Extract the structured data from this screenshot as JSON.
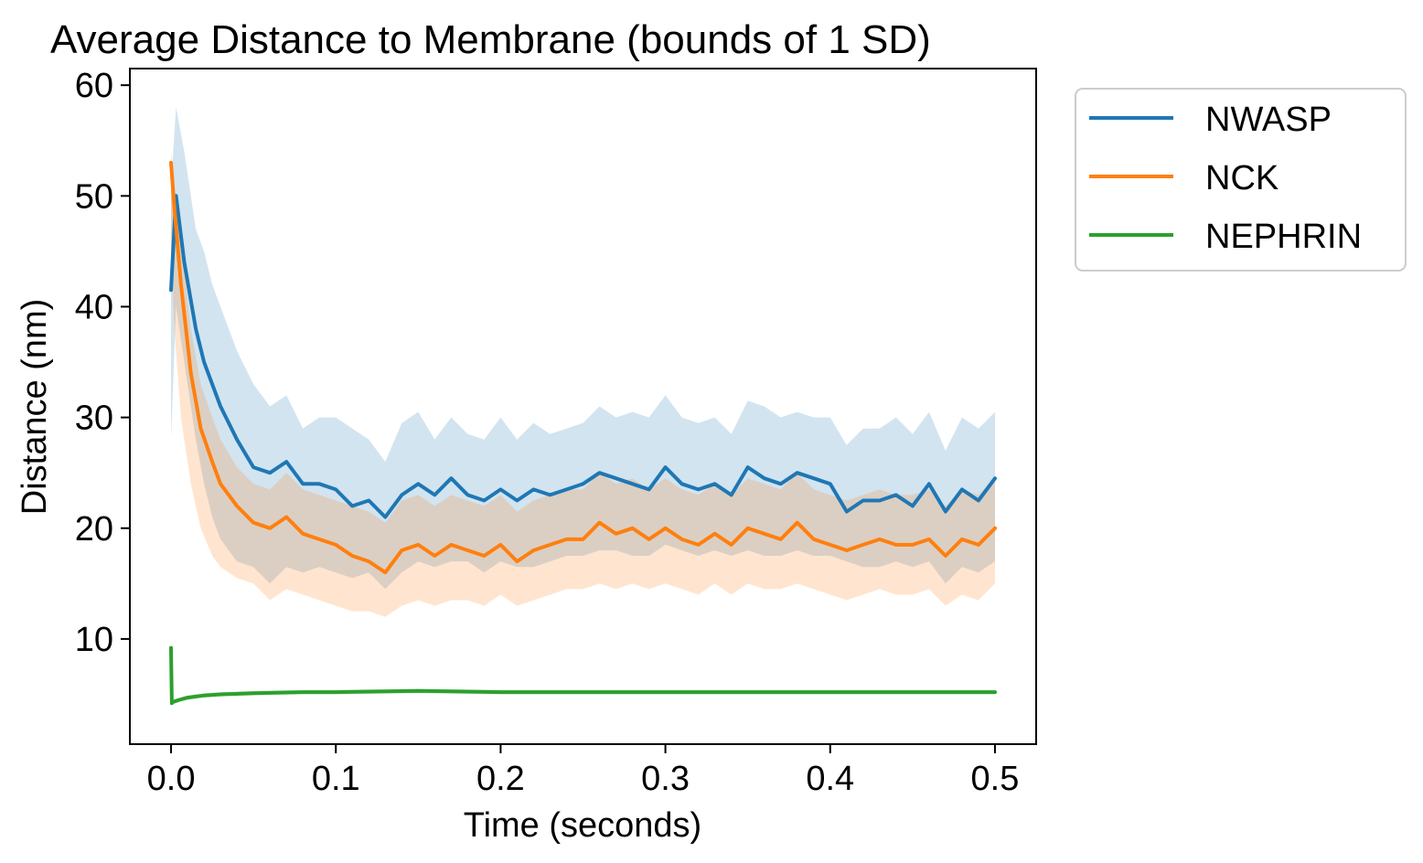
{
  "chart_data": {
    "type": "line",
    "title": "Average Distance to Membrane (bounds of 1 SD)",
    "xlabel": "Time (seconds)",
    "ylabel": "Distance (nm)",
    "xlim": [
      -0.025,
      0.525
    ],
    "ylim": [
      0.5,
      61.5
    ],
    "xticks": [
      0.0,
      0.1,
      0.2,
      0.3,
      0.4,
      0.5
    ],
    "xtick_labels": [
      "0.0",
      "0.1",
      "0.2",
      "0.3",
      "0.4",
      "0.5"
    ],
    "yticks": [
      10,
      20,
      30,
      40,
      50,
      60
    ],
    "ytick_labels": [
      "10",
      "20",
      "30",
      "40",
      "50",
      "60"
    ],
    "grid": false,
    "legend_position": "outside-top-right",
    "series": [
      {
        "name": "NWASP",
        "color": "#1f77b4",
        "band_color": "#1f77b4",
        "x": [
          0.0,
          0.003,
          0.008,
          0.015,
          0.02,
          0.025,
          0.03,
          0.04,
          0.05,
          0.06,
          0.07,
          0.08,
          0.09,
          0.1,
          0.11,
          0.12,
          0.13,
          0.14,
          0.15,
          0.16,
          0.17,
          0.18,
          0.19,
          0.2,
          0.21,
          0.22,
          0.23,
          0.24,
          0.25,
          0.26,
          0.27,
          0.28,
          0.29,
          0.3,
          0.31,
          0.32,
          0.33,
          0.34,
          0.35,
          0.36,
          0.37,
          0.38,
          0.39,
          0.4,
          0.41,
          0.42,
          0.43,
          0.44,
          0.45,
          0.46,
          0.47,
          0.48,
          0.49,
          0.5
        ],
        "y": [
          41.5,
          50.0,
          44.0,
          38.0,
          35.0,
          33.0,
          31.0,
          28.0,
          25.5,
          25.0,
          26.0,
          24.0,
          24.0,
          23.5,
          22.0,
          22.5,
          21.0,
          23.0,
          24.0,
          23.0,
          24.5,
          23.0,
          22.5,
          23.5,
          22.5,
          23.5,
          23.0,
          23.5,
          24.0,
          25.0,
          24.5,
          24.0,
          23.5,
          25.5,
          24.0,
          23.5,
          24.0,
          23.0,
          25.5,
          24.5,
          24.0,
          25.0,
          24.5,
          24.0,
          21.5,
          22.5,
          22.5,
          23.0,
          22.0,
          24.0,
          21.5,
          23.5,
          22.5,
          24.5
        ],
        "lower": [
          28.0,
          40.0,
          35.0,
          28.0,
          24.0,
          21.0,
          19.0,
          17.0,
          16.5,
          15.0,
          16.5,
          16.0,
          16.5,
          16.0,
          15.5,
          16.0,
          14.5,
          16.0,
          17.0,
          16.5,
          17.0,
          17.0,
          16.0,
          17.0,
          16.5,
          16.5,
          17.0,
          17.5,
          17.5,
          18.0,
          18.0,
          17.5,
          17.5,
          18.5,
          18.0,
          17.5,
          18.0,
          17.5,
          18.0,
          17.5,
          17.5,
          18.0,
          17.5,
          17.5,
          17.0,
          16.5,
          16.5,
          17.0,
          16.5,
          17.0,
          15.0,
          16.5,
          16.0,
          17.0
        ],
        "upper": [
          51.0,
          58.0,
          54.0,
          47.0,
          45.0,
          42.0,
          40.0,
          36.0,
          33.0,
          31.0,
          32.0,
          29.0,
          30.0,
          30.0,
          29.0,
          28.0,
          26.0,
          29.5,
          30.5,
          28.0,
          30.0,
          28.5,
          28.0,
          30.0,
          28.0,
          29.5,
          28.5,
          29.0,
          29.5,
          31.0,
          30.0,
          30.5,
          30.0,
          32.0,
          30.0,
          29.5,
          30.0,
          28.5,
          31.5,
          31.0,
          30.0,
          30.5,
          30.0,
          30.0,
          27.5,
          29.0,
          29.0,
          30.0,
          28.5,
          30.5,
          27.0,
          30.0,
          29.0,
          30.5
        ]
      },
      {
        "name": "NCK",
        "color": "#ff7f0e",
        "band_color": "#ff7f0e",
        "x": [
          0.0,
          0.002,
          0.006,
          0.012,
          0.018,
          0.025,
          0.03,
          0.04,
          0.05,
          0.06,
          0.07,
          0.08,
          0.09,
          0.1,
          0.11,
          0.12,
          0.13,
          0.14,
          0.15,
          0.16,
          0.17,
          0.18,
          0.19,
          0.2,
          0.21,
          0.22,
          0.23,
          0.24,
          0.25,
          0.26,
          0.27,
          0.28,
          0.29,
          0.3,
          0.31,
          0.32,
          0.33,
          0.34,
          0.35,
          0.36,
          0.37,
          0.38,
          0.39,
          0.4,
          0.41,
          0.42,
          0.43,
          0.44,
          0.45,
          0.46,
          0.47,
          0.48,
          0.49,
          0.5
        ],
        "y": [
          53.0,
          49.0,
          42.0,
          34.0,
          29.0,
          26.0,
          24.0,
          22.0,
          20.5,
          20.0,
          21.0,
          19.5,
          19.0,
          18.5,
          17.5,
          17.0,
          16.0,
          18.0,
          18.5,
          17.5,
          18.5,
          18.0,
          17.5,
          18.5,
          17.0,
          18.0,
          18.5,
          19.0,
          19.0,
          20.5,
          19.5,
          20.0,
          19.0,
          20.0,
          19.0,
          18.5,
          19.5,
          18.5,
          20.0,
          19.5,
          19.0,
          20.5,
          19.0,
          18.5,
          18.0,
          18.5,
          19.0,
          18.5,
          18.5,
          19.0,
          17.5,
          19.0,
          18.5,
          20.0
        ],
        "lower": [
          45.0,
          38.0,
          30.0,
          24.0,
          20.0,
          17.5,
          16.5,
          15.5,
          15.0,
          13.5,
          14.5,
          14.0,
          13.5,
          13.0,
          12.5,
          12.5,
          12.0,
          13.0,
          13.5,
          13.0,
          13.5,
          13.5,
          13.0,
          14.0,
          13.0,
          13.5,
          14.0,
          14.5,
          14.5,
          15.0,
          14.5,
          15.0,
          14.5,
          15.0,
          14.5,
          14.0,
          15.0,
          14.0,
          15.0,
          14.5,
          14.5,
          15.0,
          14.5,
          14.0,
          13.5,
          14.0,
          14.5,
          14.0,
          14.0,
          14.5,
          13.0,
          14.0,
          13.5,
          15.0
        ],
        "upper": [
          54.0,
          51.0,
          46.0,
          38.0,
          33.0,
          30.0,
          28.0,
          25.5,
          24.0,
          23.5,
          25.0,
          23.5,
          23.0,
          22.5,
          22.0,
          21.5,
          20.5,
          22.5,
          23.0,
          22.0,
          23.0,
          22.5,
          22.0,
          23.0,
          21.5,
          22.5,
          23.0,
          23.5,
          23.5,
          25.0,
          24.0,
          24.5,
          23.5,
          24.5,
          23.5,
          23.0,
          24.0,
          23.0,
          24.5,
          24.0,
          23.5,
          25.0,
          23.5,
          23.0,
          22.5,
          23.0,
          23.5,
          23.0,
          23.0,
          23.5,
          22.0,
          23.5,
          23.0,
          24.5
        ]
      },
      {
        "name": "NEPHRIN",
        "color": "#2ca02c",
        "band_color": "#2ca02c",
        "x": [
          0.0,
          0.0005,
          0.001,
          0.005,
          0.01,
          0.02,
          0.03,
          0.05,
          0.08,
          0.1,
          0.15,
          0.2,
          0.25,
          0.3,
          0.35,
          0.4,
          0.45,
          0.5
        ],
        "y": [
          9.2,
          4.2,
          4.3,
          4.5,
          4.7,
          4.9,
          5.0,
          5.1,
          5.2,
          5.2,
          5.3,
          5.2,
          5.2,
          5.2,
          5.2,
          5.2,
          5.2,
          5.2
        ],
        "lower": [
          9.0,
          4.0,
          4.1,
          4.3,
          4.5,
          4.7,
          4.8,
          4.9,
          5.0,
          5.0,
          5.1,
          5.0,
          5.0,
          5.0,
          5.0,
          5.0,
          5.0,
          5.0
        ],
        "upper": [
          9.4,
          4.4,
          4.5,
          4.7,
          4.9,
          5.1,
          5.2,
          5.3,
          5.4,
          5.4,
          5.5,
          5.4,
          5.4,
          5.4,
          5.4,
          5.4,
          5.4,
          5.4
        ]
      }
    ]
  }
}
